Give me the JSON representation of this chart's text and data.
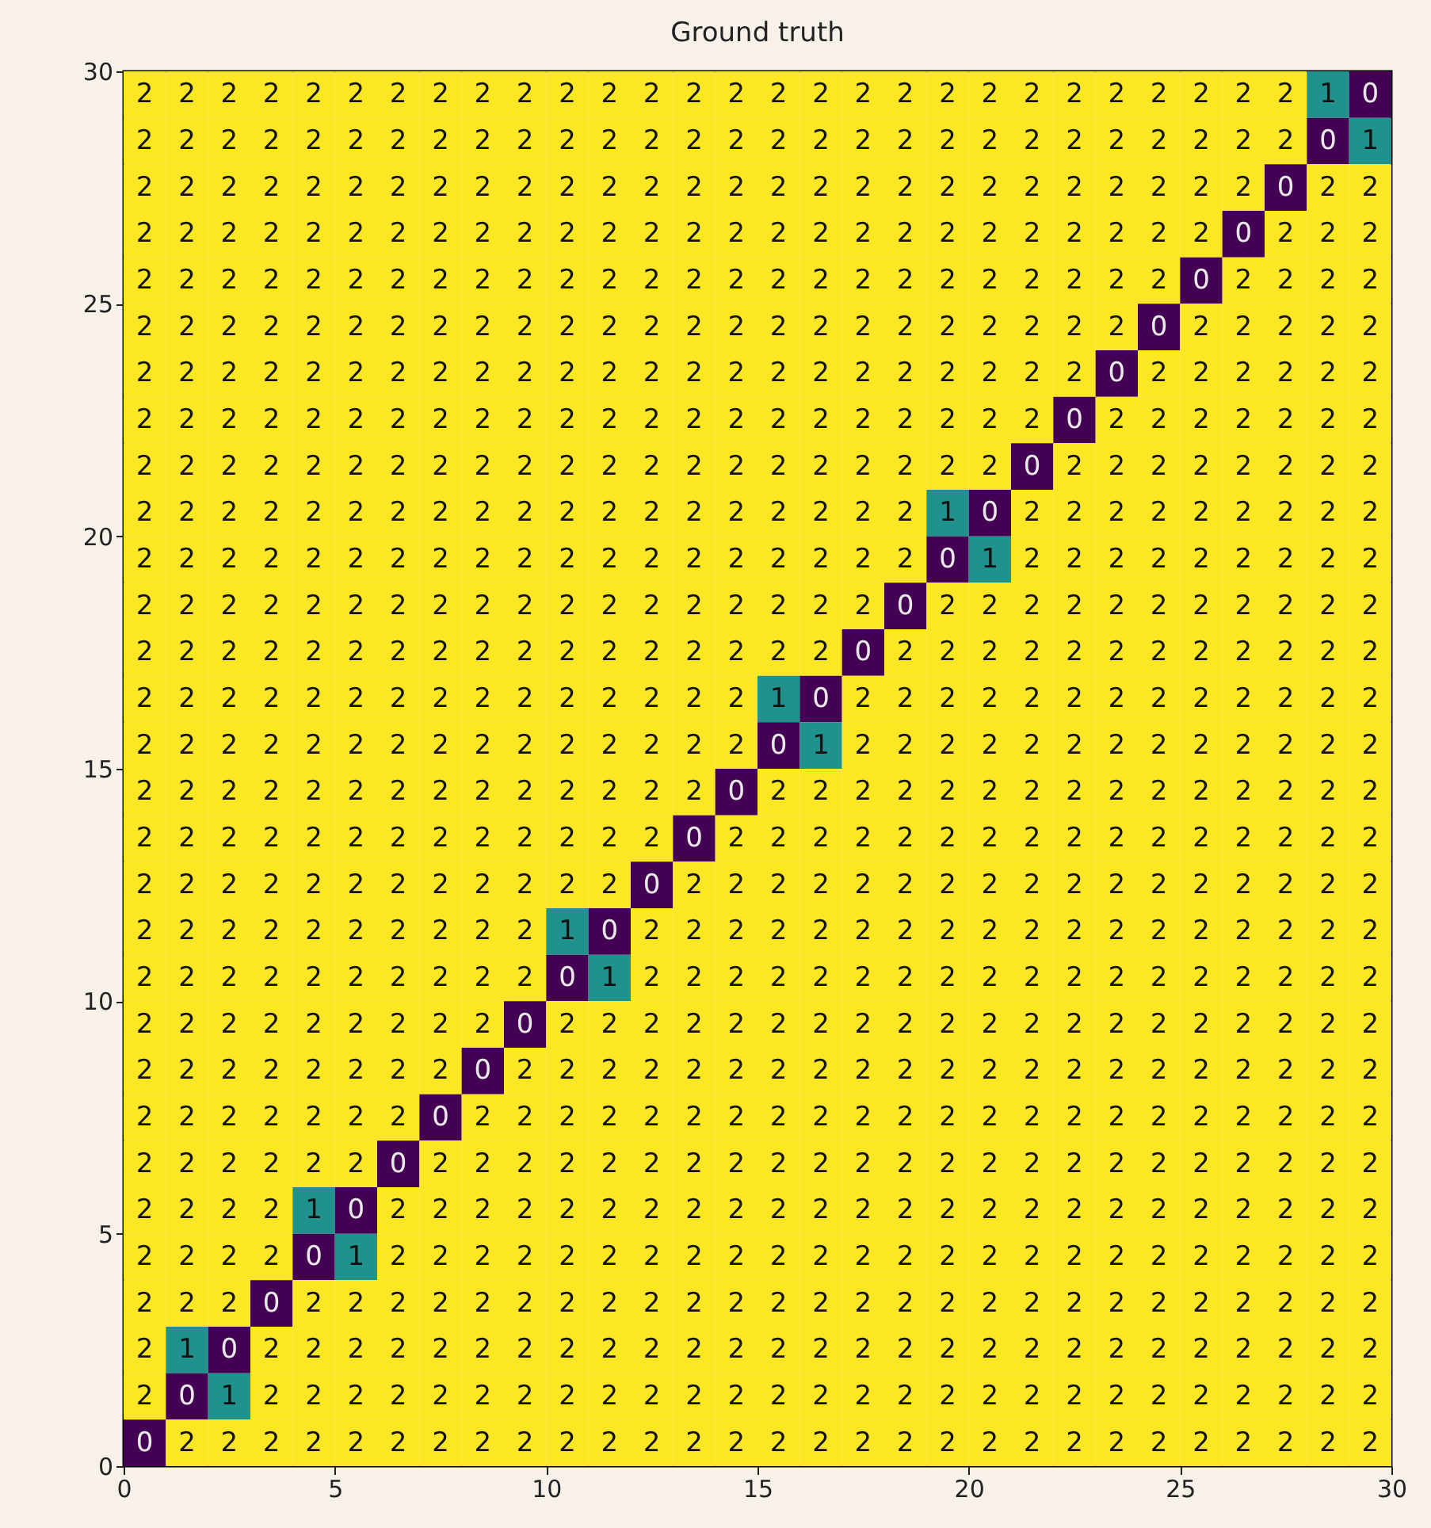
{
  "chart_data": {
    "type": "heatmap",
    "title": "Ground truth",
    "xlim": [
      0,
      30
    ],
    "xticks": [
      0,
      5,
      10,
      15,
      20,
      25,
      30
    ],
    "ylim": [
      0,
      30
    ],
    "yticks": [
      0,
      5,
      10,
      15,
      20,
      25,
      30
    ],
    "data_labels": true,
    "cells": [
      [
        2,
        2,
        2,
        2,
        2,
        2,
        2,
        2,
        2,
        2,
        2,
        2,
        2,
        2,
        2,
        2,
        2,
        2,
        2,
        2,
        2,
        2,
        2,
        2,
        2,
        2,
        2,
        2,
        1,
        0
      ],
      [
        2,
        2,
        2,
        2,
        2,
        2,
        2,
        2,
        2,
        2,
        2,
        2,
        2,
        2,
        2,
        2,
        2,
        2,
        2,
        2,
        2,
        2,
        2,
        2,
        2,
        2,
        2,
        2,
        0,
        1
      ],
      [
        2,
        2,
        2,
        2,
        2,
        2,
        2,
        2,
        2,
        2,
        2,
        2,
        2,
        2,
        2,
        2,
        2,
        2,
        2,
        2,
        2,
        2,
        2,
        2,
        2,
        2,
        2,
        0,
        2,
        2
      ],
      [
        2,
        2,
        2,
        2,
        2,
        2,
        2,
        2,
        2,
        2,
        2,
        2,
        2,
        2,
        2,
        2,
        2,
        2,
        2,
        2,
        2,
        2,
        2,
        2,
        2,
        2,
        0,
        2,
        2,
        2
      ],
      [
        2,
        2,
        2,
        2,
        2,
        2,
        2,
        2,
        2,
        2,
        2,
        2,
        2,
        2,
        2,
        2,
        2,
        2,
        2,
        2,
        2,
        2,
        2,
        2,
        2,
        0,
        2,
        2,
        2,
        2
      ],
      [
        2,
        2,
        2,
        2,
        2,
        2,
        2,
        2,
        2,
        2,
        2,
        2,
        2,
        2,
        2,
        2,
        2,
        2,
        2,
        2,
        2,
        2,
        2,
        2,
        0,
        2,
        2,
        2,
        2,
        2
      ],
      [
        2,
        2,
        2,
        2,
        2,
        2,
        2,
        2,
        2,
        2,
        2,
        2,
        2,
        2,
        2,
        2,
        2,
        2,
        2,
        2,
        2,
        2,
        2,
        0,
        2,
        2,
        2,
        2,
        2,
        2
      ],
      [
        2,
        2,
        2,
        2,
        2,
        2,
        2,
        2,
        2,
        2,
        2,
        2,
        2,
        2,
        2,
        2,
        2,
        2,
        2,
        2,
        2,
        2,
        0,
        2,
        2,
        2,
        2,
        2,
        2,
        2
      ],
      [
        2,
        2,
        2,
        2,
        2,
        2,
        2,
        2,
        2,
        2,
        2,
        2,
        2,
        2,
        2,
        2,
        2,
        2,
        2,
        2,
        2,
        0,
        2,
        2,
        2,
        2,
        2,
        2,
        2,
        2
      ],
      [
        2,
        2,
        2,
        2,
        2,
        2,
        2,
        2,
        2,
        2,
        2,
        2,
        2,
        2,
        2,
        2,
        2,
        2,
        2,
        1,
        0,
        2,
        2,
        2,
        2,
        2,
        2,
        2,
        2,
        2
      ],
      [
        2,
        2,
        2,
        2,
        2,
        2,
        2,
        2,
        2,
        2,
        2,
        2,
        2,
        2,
        2,
        2,
        2,
        2,
        2,
        0,
        1,
        2,
        2,
        2,
        2,
        2,
        2,
        2,
        2,
        2
      ],
      [
        2,
        2,
        2,
        2,
        2,
        2,
        2,
        2,
        2,
        2,
        2,
        2,
        2,
        2,
        2,
        2,
        2,
        2,
        0,
        2,
        2,
        2,
        2,
        2,
        2,
        2,
        2,
        2,
        2,
        2
      ],
      [
        2,
        2,
        2,
        2,
        2,
        2,
        2,
        2,
        2,
        2,
        2,
        2,
        2,
        2,
        2,
        2,
        2,
        0,
        2,
        2,
        2,
        2,
        2,
        2,
        2,
        2,
        2,
        2,
        2,
        2
      ],
      [
        2,
        2,
        2,
        2,
        2,
        2,
        2,
        2,
        2,
        2,
        2,
        2,
        2,
        2,
        2,
        1,
        0,
        2,
        2,
        2,
        2,
        2,
        2,
        2,
        2,
        2,
        2,
        2,
        2,
        2
      ],
      [
        2,
        2,
        2,
        2,
        2,
        2,
        2,
        2,
        2,
        2,
        2,
        2,
        2,
        2,
        2,
        0,
        1,
        2,
        2,
        2,
        2,
        2,
        2,
        2,
        2,
        2,
        2,
        2,
        2,
        2
      ],
      [
        2,
        2,
        2,
        2,
        2,
        2,
        2,
        2,
        2,
        2,
        2,
        2,
        2,
        2,
        0,
        2,
        2,
        2,
        2,
        2,
        2,
        2,
        2,
        2,
        2,
        2,
        2,
        2,
        2,
        2
      ],
      [
        2,
        2,
        2,
        2,
        2,
        2,
        2,
        2,
        2,
        2,
        2,
        2,
        2,
        0,
        2,
        2,
        2,
        2,
        2,
        2,
        2,
        2,
        2,
        2,
        2,
        2,
        2,
        2,
        2,
        2
      ],
      [
        2,
        2,
        2,
        2,
        2,
        2,
        2,
        2,
        2,
        2,
        2,
        2,
        0,
        2,
        2,
        2,
        2,
        2,
        2,
        2,
        2,
        2,
        2,
        2,
        2,
        2,
        2,
        2,
        2,
        2
      ],
      [
        2,
        2,
        2,
        2,
        2,
        2,
        2,
        2,
        2,
        2,
        1,
        0,
        2,
        2,
        2,
        2,
        2,
        2,
        2,
        2,
        2,
        2,
        2,
        2,
        2,
        2,
        2,
        2,
        2,
        2
      ],
      [
        2,
        2,
        2,
        2,
        2,
        2,
        2,
        2,
        2,
        2,
        0,
        1,
        2,
        2,
        2,
        2,
        2,
        2,
        2,
        2,
        2,
        2,
        2,
        2,
        2,
        2,
        2,
        2,
        2,
        2
      ],
      [
        2,
        2,
        2,
        2,
        2,
        2,
        2,
        2,
        2,
        0,
        2,
        2,
        2,
        2,
        2,
        2,
        2,
        2,
        2,
        2,
        2,
        2,
        2,
        2,
        2,
        2,
        2,
        2,
        2,
        2
      ],
      [
        2,
        2,
        2,
        2,
        2,
        2,
        2,
        2,
        0,
        2,
        2,
        2,
        2,
        2,
        2,
        2,
        2,
        2,
        2,
        2,
        2,
        2,
        2,
        2,
        2,
        2,
        2,
        2,
        2,
        2
      ],
      [
        2,
        2,
        2,
        2,
        2,
        2,
        2,
        0,
        2,
        2,
        2,
        2,
        2,
        2,
        2,
        2,
        2,
        2,
        2,
        2,
        2,
        2,
        2,
        2,
        2,
        2,
        2,
        2,
        2,
        2
      ],
      [
        2,
        2,
        2,
        2,
        2,
        2,
        0,
        2,
        2,
        2,
        2,
        2,
        2,
        2,
        2,
        2,
        2,
        2,
        2,
        2,
        2,
        2,
        2,
        2,
        2,
        2,
        2,
        2,
        2,
        2
      ],
      [
        2,
        2,
        2,
        2,
        1,
        0,
        2,
        2,
        2,
        2,
        2,
        2,
        2,
        2,
        2,
        2,
        2,
        2,
        2,
        2,
        2,
        2,
        2,
        2,
        2,
        2,
        2,
        2,
        2,
        2
      ],
      [
        2,
        2,
        2,
        2,
        0,
        1,
        2,
        2,
        2,
        2,
        2,
        2,
        2,
        2,
        2,
        2,
        2,
        2,
        2,
        2,
        2,
        2,
        2,
        2,
        2,
        2,
        2,
        2,
        2,
        2
      ],
      [
        2,
        2,
        2,
        0,
        2,
        2,
        2,
        2,
        2,
        2,
        2,
        2,
        2,
        2,
        2,
        2,
        2,
        2,
        2,
        2,
        2,
        2,
        2,
        2,
        2,
        2,
        2,
        2,
        2,
        2
      ],
      [
        2,
        1,
        0,
        2,
        2,
        2,
        2,
        2,
        2,
        2,
        2,
        2,
        2,
        2,
        2,
        2,
        2,
        2,
        2,
        2,
        2,
        2,
        2,
        2,
        2,
        2,
        2,
        2,
        2,
        2
      ],
      [
        2,
        0,
        1,
        2,
        2,
        2,
        2,
        2,
        2,
        2,
        2,
        2,
        2,
        2,
        2,
        2,
        2,
        2,
        2,
        2,
        2,
        2,
        2,
        2,
        2,
        2,
        2,
        2,
        2,
        2
      ],
      [
        0,
        2,
        2,
        2,
        2,
        2,
        2,
        2,
        2,
        2,
        2,
        2,
        2,
        2,
        2,
        2,
        2,
        2,
        2,
        2,
        2,
        2,
        2,
        2,
        2,
        2,
        2,
        2,
        2,
        2
      ]
    ]
  }
}
